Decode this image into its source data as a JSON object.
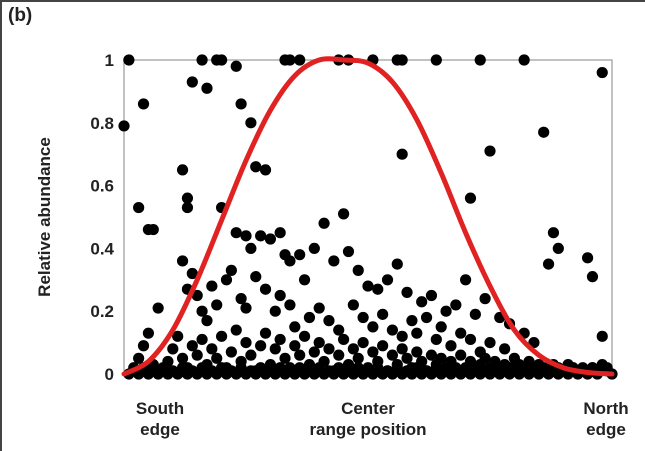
{
  "panel_label": "(b)",
  "chart_data": {
    "type": "scatter",
    "title": "",
    "ylabel": "Relative abundance",
    "xlabel": "",
    "xlim": [
      0,
      1
    ],
    "ylim": [
      0,
      1
    ],
    "yticks": [
      "0",
      "0.2",
      "0.4",
      "0.6",
      "0.8",
      "1"
    ],
    "x_category_labels": [
      {
        "x": 0.0,
        "lines": [
          "South",
          "edge"
        ]
      },
      {
        "x": 0.5,
        "lines": [
          "Center",
          "range position"
        ]
      },
      {
        "x": 1.0,
        "lines": [
          "North",
          "edge"
        ]
      }
    ],
    "grid": false,
    "curve": {
      "shape": "bell",
      "color": "#e02222",
      "points": [
        [
          0.0,
          0.0
        ],
        [
          0.05,
          0.04
        ],
        [
          0.1,
          0.14
        ],
        [
          0.15,
          0.3
        ],
        [
          0.2,
          0.49
        ],
        [
          0.25,
          0.68
        ],
        [
          0.3,
          0.84
        ],
        [
          0.35,
          0.95
        ],
        [
          0.4,
          1.0
        ],
        [
          0.45,
          1.0
        ],
        [
          0.5,
          0.99
        ],
        [
          0.55,
          0.93
        ],
        [
          0.6,
          0.81
        ],
        [
          0.65,
          0.64
        ],
        [
          0.7,
          0.45
        ],
        [
          0.75,
          0.28
        ],
        [
          0.8,
          0.14
        ],
        [
          0.85,
          0.06
        ],
        [
          0.9,
          0.02
        ],
        [
          0.95,
          0.005
        ],
        [
          1.0,
          0.0
        ]
      ]
    },
    "points_color": "#000000",
    "points": [
      [
        0.01,
        1.0
      ],
      [
        0.16,
        1.0
      ],
      [
        0.19,
        1.0
      ],
      [
        0.2,
        1.0
      ],
      [
        0.33,
        1.0
      ],
      [
        0.34,
        1.0
      ],
      [
        0.36,
        1.0
      ],
      [
        0.44,
        1.0
      ],
      [
        0.46,
        1.0
      ],
      [
        0.51,
        1.0
      ],
      [
        0.56,
        1.0
      ],
      [
        0.57,
        1.0
      ],
      [
        0.64,
        1.0
      ],
      [
        0.73,
        1.0
      ],
      [
        0.82,
        1.0
      ],
      [
        0.98,
        0.96
      ],
      [
        0.0,
        0.79
      ],
      [
        0.04,
        0.86
      ],
      [
        0.14,
        0.93
      ],
      [
        0.17,
        0.91
      ],
      [
        0.23,
        0.98
      ],
      [
        0.24,
        0.86
      ],
      [
        0.26,
        0.8
      ],
      [
        0.27,
        0.66
      ],
      [
        0.29,
        0.65
      ],
      [
        0.12,
        0.65
      ],
      [
        0.13,
        0.56
      ],
      [
        0.13,
        0.53
      ],
      [
        0.05,
        0.46
      ],
      [
        0.03,
        0.53
      ],
      [
        0.06,
        0.46
      ],
      [
        0.07,
        0.21
      ],
      [
        0.57,
        0.7
      ],
      [
        0.71,
        0.56
      ],
      [
        0.75,
        0.71
      ],
      [
        0.86,
        0.77
      ],
      [
        0.88,
        0.45
      ],
      [
        0.89,
        0.4
      ],
      [
        0.87,
        0.35
      ],
      [
        0.95,
        0.37
      ],
      [
        0.96,
        0.31
      ],
      [
        0.98,
        0.12
      ],
      [
        0.99,
        0.02
      ],
      [
        0.2,
        0.53
      ],
      [
        0.23,
        0.45
      ],
      [
        0.25,
        0.44
      ],
      [
        0.26,
        0.4
      ],
      [
        0.28,
        0.44
      ],
      [
        0.3,
        0.43
      ],
      [
        0.32,
        0.45
      ],
      [
        0.33,
        0.38
      ],
      [
        0.34,
        0.36
      ],
      [
        0.36,
        0.38
      ],
      [
        0.37,
        0.3
      ],
      [
        0.39,
        0.4
      ],
      [
        0.41,
        0.48
      ],
      [
        0.43,
        0.36
      ],
      [
        0.45,
        0.51
      ],
      [
        0.46,
        0.39
      ],
      [
        0.48,
        0.33
      ],
      [
        0.5,
        0.28
      ],
      [
        0.52,
        0.27
      ],
      [
        0.54,
        0.3
      ],
      [
        0.56,
        0.35
      ],
      [
        0.58,
        0.26
      ],
      [
        0.61,
        0.23
      ],
      [
        0.63,
        0.25
      ],
      [
        0.66,
        0.2
      ],
      [
        0.68,
        0.22
      ],
      [
        0.7,
        0.3
      ],
      [
        0.72,
        0.19
      ],
      [
        0.74,
        0.24
      ],
      [
        0.77,
        0.18
      ],
      [
        0.79,
        0.16
      ],
      [
        0.82,
        0.13
      ],
      [
        0.84,
        0.1
      ],
      [
        0.12,
        0.36
      ],
      [
        0.13,
        0.27
      ],
      [
        0.14,
        0.32
      ],
      [
        0.15,
        0.25
      ],
      [
        0.16,
        0.2
      ],
      [
        0.17,
        0.17
      ],
      [
        0.18,
        0.28
      ],
      [
        0.19,
        0.22
      ],
      [
        0.21,
        0.3
      ],
      [
        0.22,
        0.33
      ],
      [
        0.24,
        0.24
      ],
      [
        0.25,
        0.21
      ],
      [
        0.27,
        0.31
      ],
      [
        0.29,
        0.27
      ],
      [
        0.31,
        0.2
      ],
      [
        0.32,
        0.25
      ],
      [
        0.34,
        0.22
      ],
      [
        0.35,
        0.15
      ],
      [
        0.38,
        0.18
      ],
      [
        0.4,
        0.21
      ],
      [
        0.42,
        0.17
      ],
      [
        0.44,
        0.14
      ],
      [
        0.47,
        0.22
      ],
      [
        0.49,
        0.18
      ],
      [
        0.51,
        0.15
      ],
      [
        0.53,
        0.19
      ],
      [
        0.55,
        0.14
      ],
      [
        0.57,
        0.12
      ],
      [
        0.59,
        0.17
      ],
      [
        0.6,
        0.13
      ],
      [
        0.62,
        0.18
      ],
      [
        0.64,
        0.11
      ],
      [
        0.65,
        0.15
      ],
      [
        0.67,
        0.09
      ],
      [
        0.69,
        0.13
      ],
      [
        0.71,
        0.11
      ],
      [
        0.73,
        0.07
      ],
      [
        0.75,
        0.1
      ],
      [
        0.78,
        0.08
      ],
      [
        0.8,
        0.05
      ],
      [
        0.02,
        0.02
      ],
      [
        0.03,
        0.05
      ],
      [
        0.04,
        0.09
      ],
      [
        0.05,
        0.13
      ],
      [
        0.06,
        0.03
      ],
      [
        0.08,
        0.01
      ],
      [
        0.09,
        0.04
      ],
      [
        0.1,
        0.08
      ],
      [
        0.11,
        0.12
      ],
      [
        0.12,
        0.05
      ],
      [
        0.13,
        0.02
      ],
      [
        0.14,
        0.09
      ],
      [
        0.15,
        0.06
      ],
      [
        0.16,
        0.11
      ],
      [
        0.17,
        0.03
      ],
      [
        0.18,
        0.08
      ],
      [
        0.19,
        0.05
      ],
      [
        0.2,
        0.12
      ],
      [
        0.21,
        0.02
      ],
      [
        0.22,
        0.07
      ],
      [
        0.23,
        0.14
      ],
      [
        0.24,
        0.04
      ],
      [
        0.25,
        0.1
      ],
      [
        0.26,
        0.06
      ],
      [
        0.27,
        0.01
      ],
      [
        0.28,
        0.09
      ],
      [
        0.29,
        0.13
      ],
      [
        0.3,
        0.03
      ],
      [
        0.31,
        0.08
      ],
      [
        0.32,
        0.11
      ],
      [
        0.33,
        0.05
      ],
      [
        0.34,
        0.02
      ],
      [
        0.35,
        0.09
      ],
      [
        0.36,
        0.06
      ],
      [
        0.37,
        0.12
      ],
      [
        0.38,
        0.03
      ],
      [
        0.39,
        0.07
      ],
      [
        0.4,
        0.1
      ],
      [
        0.41,
        0.04
      ],
      [
        0.42,
        0.08
      ],
      [
        0.43,
        0.01
      ],
      [
        0.44,
        0.06
      ],
      [
        0.45,
        0.11
      ],
      [
        0.46,
        0.03
      ],
      [
        0.47,
        0.08
      ],
      [
        0.48,
        0.05
      ],
      [
        0.49,
        0.1
      ],
      [
        0.5,
        0.02
      ],
      [
        0.51,
        0.07
      ],
      [
        0.52,
        0.04
      ],
      [
        0.53,
        0.09
      ],
      [
        0.54,
        0.01
      ],
      [
        0.55,
        0.06
      ],
      [
        0.56,
        0.03
      ],
      [
        0.57,
        0.08
      ],
      [
        0.58,
        0.05
      ],
      [
        0.59,
        0.02
      ],
      [
        0.6,
        0.07
      ],
      [
        0.61,
        0.04
      ],
      [
        0.62,
        0.01
      ],
      [
        0.63,
        0.06
      ],
      [
        0.64,
        0.03
      ],
      [
        0.65,
        0.05
      ],
      [
        0.66,
        0.02
      ],
      [
        0.67,
        0.04
      ],
      [
        0.68,
        0.01
      ],
      [
        0.69,
        0.06
      ],
      [
        0.7,
        0.02
      ],
      [
        0.71,
        0.04
      ],
      [
        0.72,
        0.01
      ],
      [
        0.73,
        0.03
      ],
      [
        0.74,
        0.05
      ],
      [
        0.75,
        0.02
      ],
      [
        0.76,
        0.04
      ],
      [
        0.77,
        0.01
      ],
      [
        0.78,
        0.03
      ],
      [
        0.79,
        0.02
      ],
      [
        0.8,
        0.01
      ],
      [
        0.81,
        0.03
      ],
      [
        0.82,
        0.02
      ],
      [
        0.83,
        0.04
      ],
      [
        0.84,
        0.01
      ],
      [
        0.85,
        0.03
      ],
      [
        0.86,
        0.02
      ],
      [
        0.87,
        0.01
      ],
      [
        0.88,
        0.03
      ],
      [
        0.89,
        0.02
      ],
      [
        0.9,
        0.01
      ],
      [
        0.91,
        0.03
      ],
      [
        0.92,
        0.02
      ],
      [
        0.93,
        0.01
      ],
      [
        0.94,
        0.02
      ],
      [
        0.95,
        0.01
      ],
      [
        0.96,
        0.02
      ],
      [
        0.97,
        0.01
      ],
      [
        0.98,
        0.03
      ],
      [
        0.99,
        0.01
      ],
      [
        1.0,
        0.0
      ],
      [
        0.01,
        0.0
      ],
      [
        0.02,
        0.01
      ],
      [
        0.03,
        0.0
      ],
      [
        0.04,
        0.02
      ],
      [
        0.05,
        0.0
      ],
      [
        0.06,
        0.01
      ],
      [
        0.07,
        0.0
      ],
      [
        0.08,
        0.02
      ],
      [
        0.09,
        0.0
      ],
      [
        0.1,
        0.01
      ],
      [
        0.11,
        0.0
      ],
      [
        0.12,
        0.02
      ],
      [
        0.13,
        0.0
      ],
      [
        0.14,
        0.01
      ],
      [
        0.15,
        0.0
      ],
      [
        0.16,
        0.02
      ],
      [
        0.17,
        0.0
      ],
      [
        0.18,
        0.01
      ],
      [
        0.19,
        0.0
      ],
      [
        0.2,
        0.02
      ],
      [
        0.21,
        0.0
      ],
      [
        0.22,
        0.01
      ],
      [
        0.23,
        0.0
      ],
      [
        0.24,
        0.02
      ],
      [
        0.25,
        0.0
      ],
      [
        0.26,
        0.01
      ],
      [
        0.27,
        0.0
      ],
      [
        0.28,
        0.02
      ],
      [
        0.29,
        0.0
      ],
      [
        0.3,
        0.01
      ],
      [
        0.31,
        0.0
      ],
      [
        0.32,
        0.02
      ],
      [
        0.33,
        0.0
      ],
      [
        0.34,
        0.01
      ],
      [
        0.35,
        0.0
      ],
      [
        0.36,
        0.02
      ],
      [
        0.37,
        0.0
      ],
      [
        0.38,
        0.01
      ],
      [
        0.39,
        0.0
      ],
      [
        0.4,
        0.02
      ],
      [
        0.41,
        0.0
      ],
      [
        0.42,
        0.01
      ],
      [
        0.43,
        0.0
      ],
      [
        0.44,
        0.02
      ],
      [
        0.45,
        0.0
      ],
      [
        0.46,
        0.01
      ],
      [
        0.47,
        0.0
      ],
      [
        0.48,
        0.02
      ],
      [
        0.49,
        0.0
      ],
      [
        0.5,
        0.01
      ],
      [
        0.51,
        0.0
      ],
      [
        0.52,
        0.02
      ],
      [
        0.53,
        0.0
      ],
      [
        0.54,
        0.01
      ],
      [
        0.55,
        0.0
      ],
      [
        0.56,
        0.02
      ],
      [
        0.57,
        0.0
      ],
      [
        0.58,
        0.01
      ],
      [
        0.59,
        0.0
      ],
      [
        0.6,
        0.02
      ],
      [
        0.61,
        0.0
      ],
      [
        0.62,
        0.01
      ],
      [
        0.63,
        0.0
      ],
      [
        0.64,
        0.02
      ],
      [
        0.65,
        0.0
      ],
      [
        0.66,
        0.01
      ],
      [
        0.67,
        0.0
      ],
      [
        0.68,
        0.02
      ],
      [
        0.69,
        0.0
      ],
      [
        0.7,
        0.01
      ],
      [
        0.71,
        0.0
      ],
      [
        0.72,
        0.02
      ],
      [
        0.73,
        0.0
      ],
      [
        0.74,
        0.01
      ],
      [
        0.75,
        0.0
      ],
      [
        0.76,
        0.02
      ],
      [
        0.77,
        0.0
      ],
      [
        0.78,
        0.01
      ],
      [
        0.79,
        0.0
      ],
      [
        0.8,
        0.02
      ],
      [
        0.81,
        0.0
      ],
      [
        0.82,
        0.01
      ],
      [
        0.83,
        0.0
      ],
      [
        0.84,
        0.02
      ],
      [
        0.85,
        0.0
      ],
      [
        0.86,
        0.01
      ],
      [
        0.87,
        0.0
      ],
      [
        0.88,
        0.02
      ],
      [
        0.89,
        0.0
      ],
      [
        0.9,
        0.01
      ],
      [
        0.91,
        0.0
      ],
      [
        0.92,
        0.02
      ],
      [
        0.93,
        0.0
      ],
      [
        0.94,
        0.01
      ],
      [
        0.95,
        0.0
      ],
      [
        0.96,
        0.02
      ],
      [
        0.97,
        0.0
      ]
    ]
  }
}
